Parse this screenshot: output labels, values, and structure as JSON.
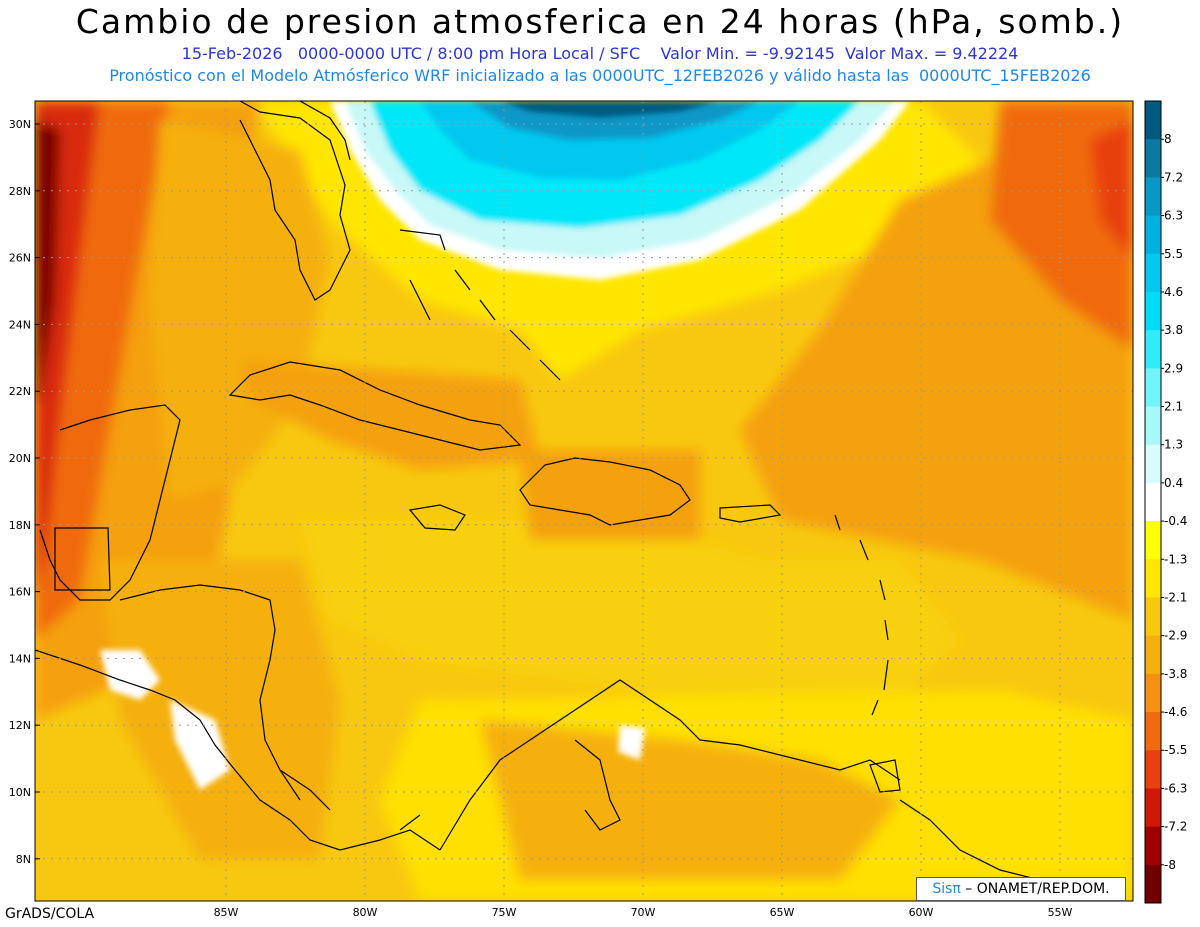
{
  "header": {
    "title": "Cambio de presion atmosferica en 24 horas (hPa, somb.)",
    "subtitle1": "15-Feb-2026   0000-0000 UTC / 8:00 pm Hora Local / SFC    Valor Min. = -9.92145  Valor Max. = 9.42224",
    "subtitle2": "Pronóstico con el Modelo Atmósferico WRF inicializado a las 0000UTC_12FEB2026 y válido hasta las  0000UTC_15FEB2026"
  },
  "map": {
    "lat_labels": [
      "30N",
      "28N",
      "26N",
      "24N",
      "22N",
      "20N",
      "18N",
      "16N",
      "14N",
      "12N",
      "10N",
      "8N"
    ],
    "lon_labels": [
      "85W",
      "80W",
      "75W",
      "70W",
      "65W",
      "60W",
      "55W"
    ],
    "colors": {
      "deep_red": "#7a0000",
      "red": "#d92a0a",
      "orange_red": "#f06010",
      "orange": "#f5a010",
      "light_orange": "#f8c010",
      "yellow": "#ffe800",
      "bright_yellow": "#ffff00",
      "white": "#ffffff",
      "pale_cyan": "#c8f8f8",
      "cyan": "#00e8f8",
      "deep_cyan": "#00b0e0",
      "navy_teal": "#005a80",
      "coastline": "#000000"
    }
  },
  "colorbar": {
    "labels": [
      "8",
      "7.2",
      "6.3",
      "5.5",
      "4.6",
      "3.8",
      "2.9",
      "2.1",
      "1.3",
      "0.4",
      "-0.4",
      "-1.3",
      "-2.1",
      "-2.9",
      "-3.8",
      "-4.6",
      "-5.5",
      "-6.3",
      "-7.2",
      "-8"
    ],
    "colors": [
      "#005a80",
      "#0a7aa0",
      "#0898c8",
      "#00b0e0",
      "#00c8f0",
      "#00dcf8",
      "#30ecfa",
      "#70f4fa",
      "#a8f8fa",
      "#d8fcfc",
      "#ffffff",
      "#ffff00",
      "#ffe600",
      "#f8c810",
      "#f5b010",
      "#f59010",
      "#f06a10",
      "#e84010",
      "#d01808",
      "#a00000",
      "#700000"
    ]
  },
  "credit": {
    "sis": "Sisπ",
    "rest": " – ONAMET/REP.DOM."
  },
  "footer": {
    "grads": "GrADS/COLA"
  }
}
